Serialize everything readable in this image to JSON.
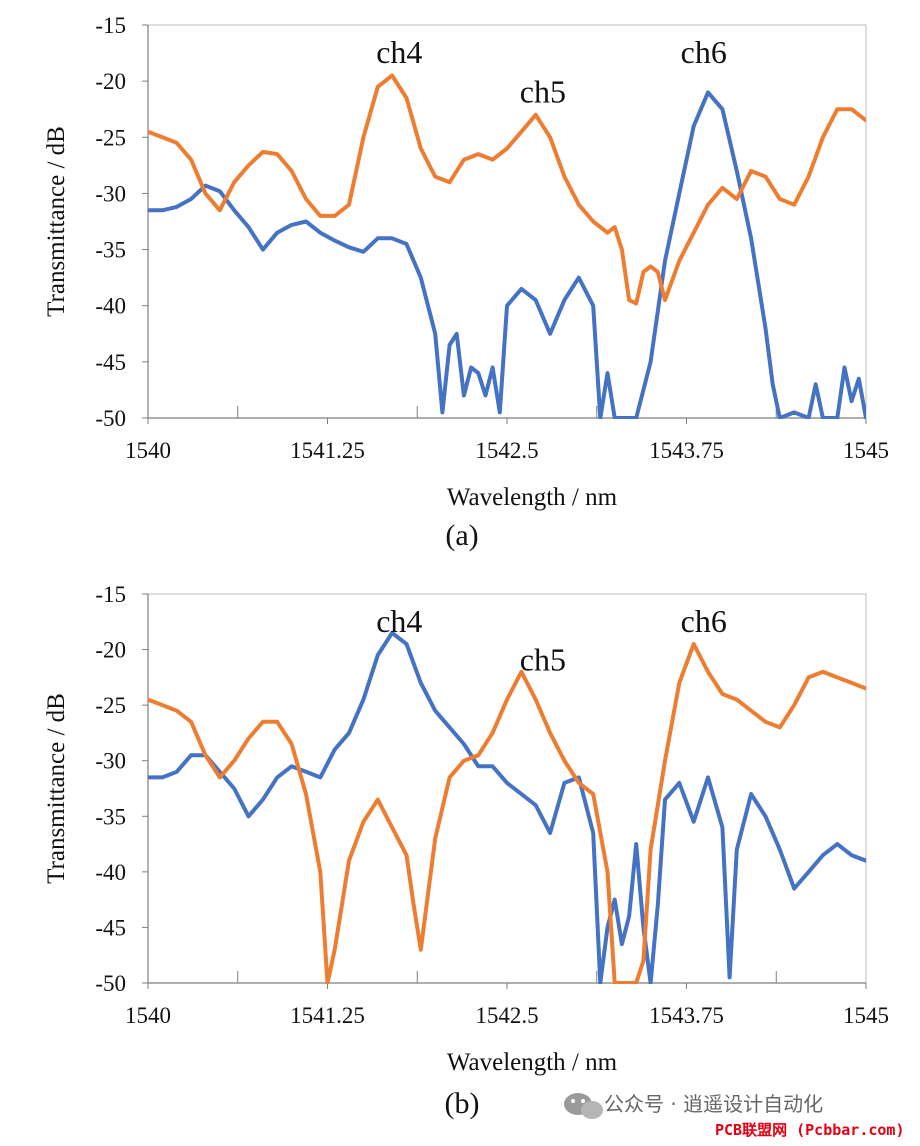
{
  "chart_data": [
    {
      "type": "line",
      "panel_label": "(a)",
      "xlabel": "Wavelength / nm",
      "ylabel": "Transmittance / dB",
      "xlim": [
        1540,
        1545
      ],
      "ylim": [
        -50,
        -15
      ],
      "x_ticks": [
        1540,
        1541.25,
        1542.5,
        1543.75,
        1545
      ],
      "x_tick_labels": [
        "1540",
        "1541.25",
        "1542.5",
        "1543.75",
        "1545"
      ],
      "x_minor_ticks": [
        1540.625,
        1541.875,
        1543.125,
        1544.375
      ],
      "y_ticks": [
        -15,
        -20,
        -25,
        -30,
        -35,
        -40,
        -45,
        -50
      ],
      "grid": false,
      "annotations": [
        {
          "text": "ch4",
          "x": 1541.75,
          "y": -17.5
        },
        {
          "text": "ch5",
          "x": 1542.75,
          "y": -21.0
        },
        {
          "text": "ch6",
          "x": 1543.87,
          "y": -17.5
        }
      ],
      "series": [
        {
          "color": "#4472c4",
          "x": [
            1540,
            1540.1,
            1540.2,
            1540.3,
            1540.4,
            1540.5,
            1540.6,
            1540.7,
            1540.8,
            1540.9,
            1541.0,
            1541.1,
            1541.2,
            1541.3,
            1541.4,
            1541.5,
            1541.6,
            1541.7,
            1541.8,
            1541.9,
            1542.0,
            1542.05,
            1542.1,
            1542.15,
            1542.2,
            1542.25,
            1542.3,
            1542.35,
            1542.4,
            1542.45,
            1542.5,
            1542.6,
            1542.7,
            1542.8,
            1542.9,
            1543.0,
            1543.1,
            1543.15,
            1543.2,
            1543.25,
            1543.3,
            1543.4,
            1543.5,
            1543.6,
            1543.7,
            1543.8,
            1543.9,
            1544.0,
            1544.1,
            1544.2,
            1544.3,
            1544.35,
            1544.4,
            1544.5,
            1544.6,
            1544.65,
            1544.7,
            1544.75,
            1544.8,
            1544.85,
            1544.9,
            1544.95,
            1545.0
          ],
          "y": [
            -31.5,
            -31.5,
            -31.2,
            -30.5,
            -29.3,
            -29.8,
            -31.5,
            -33.0,
            -35.0,
            -33.5,
            -32.8,
            -32.5,
            -33.5,
            -34.2,
            -34.8,
            -35.2,
            -34.0,
            -34.0,
            -34.5,
            -37.5,
            -42.5,
            -49.5,
            -43.5,
            -42.5,
            -48.0,
            -45.5,
            -46.0,
            -48.0,
            -45.5,
            -49.5,
            -40.0,
            -38.5,
            -39.5,
            -42.5,
            -39.5,
            -37.5,
            -40.0,
            -50.0,
            -46.0,
            -50.0,
            -50.0,
            -50.0,
            -45.0,
            -36.0,
            -30.0,
            -24.0,
            -21.0,
            -22.5,
            -28.0,
            -34.0,
            -42.0,
            -47.0,
            -50.0,
            -49.5,
            -50.0,
            -47.0,
            -50.0,
            -50.0,
            -50.0,
            -45.5,
            -48.5,
            -46.5,
            -50.0
          ]
        },
        {
          "color": "#ed7d31",
          "x": [
            1540,
            1540.1,
            1540.2,
            1540.3,
            1540.4,
            1540.5,
            1540.6,
            1540.7,
            1540.8,
            1540.9,
            1541.0,
            1541.1,
            1541.2,
            1541.3,
            1541.4,
            1541.5,
            1541.6,
            1541.7,
            1541.8,
            1541.9,
            1542.0,
            1542.1,
            1542.2,
            1542.3,
            1542.4,
            1542.5,
            1542.6,
            1542.7,
            1542.8,
            1542.9,
            1543.0,
            1543.1,
            1543.2,
            1543.25,
            1543.3,
            1543.35,
            1543.4,
            1543.45,
            1543.5,
            1543.55,
            1543.6,
            1543.7,
            1543.8,
            1543.9,
            1544.0,
            1544.1,
            1544.2,
            1544.3,
            1544.4,
            1544.5,
            1544.6,
            1544.7,
            1544.8,
            1544.9,
            1545.0
          ],
          "y": [
            -24.5,
            -25.0,
            -25.5,
            -27.0,
            -30.0,
            -31.5,
            -29.0,
            -27.5,
            -26.3,
            -26.5,
            -28.0,
            -30.5,
            -32.0,
            -32.0,
            -31.0,
            -25.0,
            -20.5,
            -19.5,
            -21.5,
            -26.0,
            -28.5,
            -29.0,
            -27.0,
            -26.5,
            -27.0,
            -26.0,
            -24.5,
            -23.0,
            -25.0,
            -28.5,
            -31.0,
            -32.5,
            -33.5,
            -33.0,
            -35.0,
            -39.5,
            -39.8,
            -37.0,
            -36.5,
            -37.0,
            -39.5,
            -36.0,
            -33.5,
            -31.0,
            -29.5,
            -30.5,
            -28.0,
            -28.5,
            -30.5,
            -31.0,
            -28.5,
            -25.0,
            -22.5,
            -22.5,
            -23.5
          ]
        }
      ]
    },
    {
      "type": "line",
      "panel_label": "(b)",
      "xlabel": "Wavelength / nm",
      "ylabel": "Transmittance / dB",
      "xlim": [
        1540,
        1545
      ],
      "ylim": [
        -50,
        -15
      ],
      "x_ticks": [
        1540,
        1541.25,
        1542.5,
        1543.75,
        1545
      ],
      "x_tick_labels": [
        "1540",
        "1541.25",
        "1542.5",
        "1543.75",
        "1545"
      ],
      "x_minor_ticks": [
        1540.625,
        1541.875,
        1543.125,
        1544.375
      ],
      "y_ticks": [
        -15,
        -20,
        -25,
        -30,
        -35,
        -40,
        -45,
        -50
      ],
      "grid": false,
      "annotations": [
        {
          "text": "ch4",
          "x": 1541.75,
          "y": -17.5
        },
        {
          "text": "ch5",
          "x": 1542.75,
          "y": -21.0
        },
        {
          "text": "ch6",
          "x": 1543.87,
          "y": -17.5
        }
      ],
      "series": [
        {
          "color": "#4472c4",
          "x": [
            1540,
            1540.1,
            1540.2,
            1540.3,
            1540.4,
            1540.5,
            1540.6,
            1540.7,
            1540.8,
            1540.9,
            1541.0,
            1541.1,
            1541.2,
            1541.3,
            1541.4,
            1541.5,
            1541.6,
            1541.7,
            1541.8,
            1541.9,
            1542.0,
            1542.1,
            1542.2,
            1542.3,
            1542.4,
            1542.5,
            1542.6,
            1542.7,
            1542.8,
            1542.9,
            1543.0,
            1543.1,
            1543.15,
            1543.2,
            1543.25,
            1543.3,
            1543.35,
            1543.4,
            1543.45,
            1543.5,
            1543.55,
            1543.6,
            1543.7,
            1543.8,
            1543.9,
            1544.0,
            1544.05,
            1544.1,
            1544.2,
            1544.3,
            1544.4,
            1544.5,
            1544.6,
            1544.7,
            1544.8,
            1544.9,
            1545.0
          ],
          "y": [
            -31.5,
            -31.5,
            -31.0,
            -29.5,
            -29.5,
            -31.0,
            -32.5,
            -35.0,
            -33.5,
            -31.5,
            -30.5,
            -31.0,
            -31.5,
            -29.0,
            -27.5,
            -24.5,
            -20.5,
            -18.5,
            -19.5,
            -23.0,
            -25.5,
            -27.0,
            -28.5,
            -30.5,
            -30.5,
            -32.0,
            -33.0,
            -34.0,
            -36.5,
            -32.0,
            -31.5,
            -36.5,
            -50.0,
            -45.0,
            -42.5,
            -46.5,
            -44.0,
            -37.5,
            -45.0,
            -50.0,
            -43.0,
            -33.5,
            -32.0,
            -35.5,
            -31.5,
            -36.0,
            -49.5,
            -38.0,
            -33.0,
            -35.0,
            -38.0,
            -41.5,
            -40.0,
            -38.5,
            -37.5,
            -38.5,
            -39.0
          ]
        },
        {
          "color": "#ed7d31",
          "x": [
            1540,
            1540.1,
            1540.2,
            1540.3,
            1540.4,
            1540.5,
            1540.6,
            1540.7,
            1540.8,
            1540.9,
            1541.0,
            1541.1,
            1541.2,
            1541.25,
            1541.3,
            1541.4,
            1541.5,
            1541.6,
            1541.7,
            1541.8,
            1541.85,
            1541.9,
            1542.0,
            1542.1,
            1542.2,
            1542.3,
            1542.4,
            1542.5,
            1542.6,
            1542.7,
            1542.8,
            1542.9,
            1543.0,
            1543.1,
            1543.2,
            1543.25,
            1543.3,
            1543.35,
            1543.4,
            1543.45,
            1543.5,
            1543.6,
            1543.7,
            1543.8,
            1543.9,
            1544.0,
            1544.1,
            1544.2,
            1544.3,
            1544.4,
            1544.5,
            1544.6,
            1544.7,
            1544.8,
            1544.9,
            1545.0
          ],
          "y": [
            -24.5,
            -25.0,
            -25.5,
            -26.5,
            -29.5,
            -31.5,
            -30.0,
            -28.0,
            -26.5,
            -26.5,
            -28.5,
            -33.0,
            -40.0,
            -50.0,
            -47.0,
            -39.0,
            -35.5,
            -33.5,
            -36.0,
            -38.5,
            -43.0,
            -47.0,
            -37.0,
            -31.5,
            -30.0,
            -29.5,
            -27.5,
            -24.5,
            -22.0,
            -24.5,
            -27.5,
            -30.0,
            -32.0,
            -33.0,
            -40.0,
            -50.0,
            -50.0,
            -50.0,
            -50.0,
            -48.0,
            -38.0,
            -30.0,
            -23.0,
            -19.5,
            -22.0,
            -24.0,
            -24.5,
            -25.5,
            -26.5,
            -27.0,
            -25.0,
            -22.5,
            -22.0,
            -22.5,
            -23.0,
            -23.5
          ]
        }
      ]
    }
  ],
  "watermark": {
    "line1": "公众号 · 逍遥设计自动化",
    "line2": "PCB联盟网 (Pcbbar.com)",
    "icon": "wechat-icon"
  }
}
